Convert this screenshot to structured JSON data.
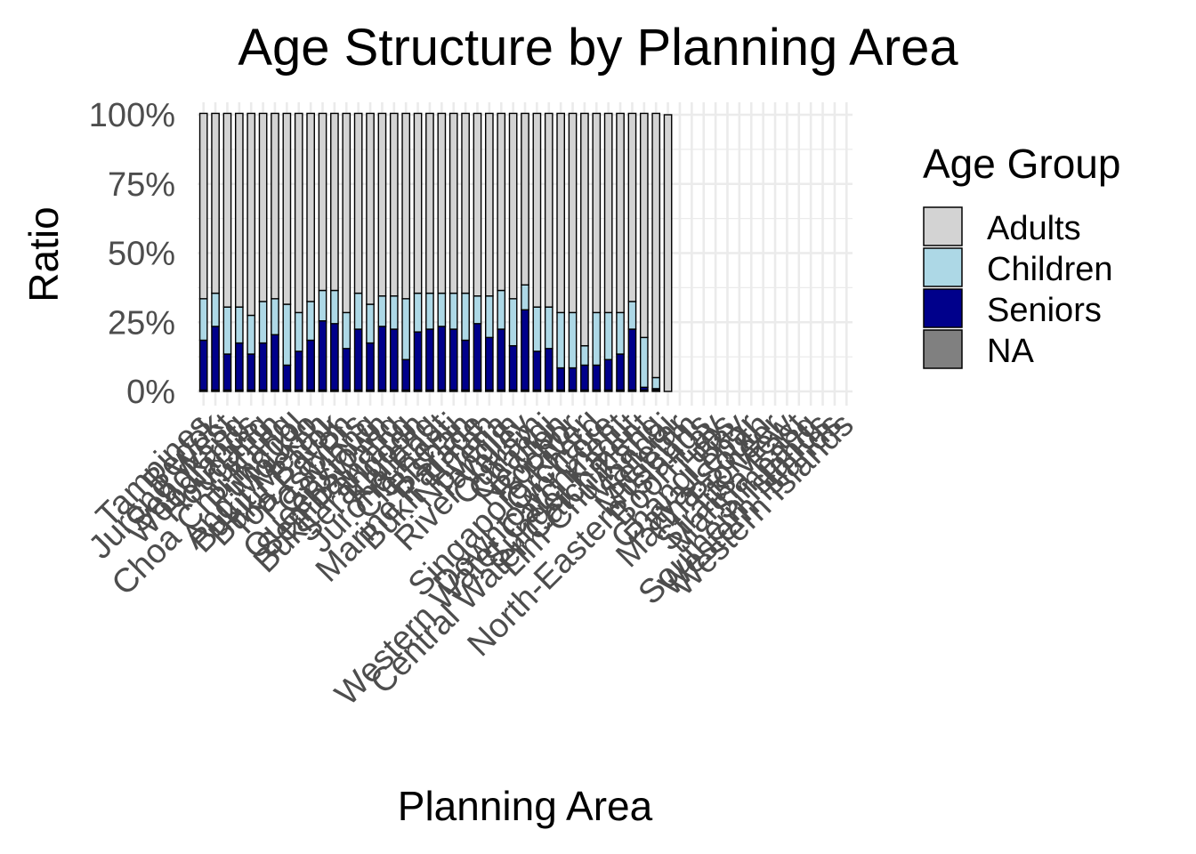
{
  "chart_data": {
    "type": "bar",
    "title": "Age Structure by Planning Area",
    "xlabel": "Planning Area",
    "ylabel": "Ratio",
    "ylim": [
      0,
      1
    ],
    "y_ticks": [
      "0%",
      "25%",
      "50%",
      "75%",
      "100%"
    ],
    "stacked": true,
    "grid": true,
    "legend": {
      "title": "Age Group",
      "placement": "right",
      "entries": [
        "Adults",
        "Children",
        "Seniors",
        "NA"
      ]
    },
    "colors": {
      "Adults": "#d3d3d3",
      "Children": "#add8e6",
      "Seniors": "#00008b",
      "NA": "#808080"
    },
    "categories": [
      "Tampines",
      "Bedok",
      "Jurong West",
      "Sengkang",
      "Woodlands",
      "Hougang",
      "Yishun",
      "Choa Chu Kang",
      "Punggol",
      "Ang Mo Kio",
      "Bukit Merah",
      "Bukit Batok",
      "Toa Payoh",
      "Pasir Ris",
      "Geylang",
      "Queenstown",
      "Sembawang",
      "Bukit Panjang",
      "Serangoon",
      "Kallang",
      "Jurong East",
      "Clementi",
      "Bishan",
      "Marine Parade",
      "Bukit Timah",
      "Novena",
      "Tanglin",
      "River Valley",
      "Outram",
      "Changi",
      "Newton",
      "Rochor",
      "Singapore River",
      "Orchard",
      "Downtown Core",
      "Western Water Catchment",
      "Sungei Kadut",
      "Central Water Catchment",
      "Lim Chu Kang",
      "Mandai",
      "Seletar",
      "Museum",
      "North-Eastern Islands",
      "Boon Lay",
      "Tuas",
      "Changi Bay",
      "Paya Lebar",
      "Marina South",
      "Pioneer",
      "Straits View",
      "Marina East",
      "Simpang",
      "Southern Islands",
      "Western Islands",
      "Western Islands"
    ],
    "series": [
      {
        "name": "Seniors",
        "values": [
          0.18,
          0.23,
          0.13,
          0.17,
          0.13,
          0.17,
          0.2,
          0.09,
          0.14,
          0.18,
          0.25,
          0.24,
          0.15,
          0.22,
          0.17,
          0.23,
          0.22,
          0.11,
          0.21,
          0.22,
          0.23,
          0.22,
          0.18,
          0.24,
          0.19,
          0.22,
          0.16,
          0.29,
          0.14,
          0.15,
          0.08,
          0.08,
          0.09,
          0.09,
          0.11,
          0.13,
          0.22,
          0.01,
          0.005,
          0,
          0,
          0,
          0,
          0,
          0,
          0,
          0,
          0,
          0,
          0,
          0,
          0,
          0,
          0,
          0
        ]
      },
      {
        "name": "Children",
        "values": [
          0.15,
          0.12,
          0.17,
          0.13,
          0.14,
          0.15,
          0.13,
          0.22,
          0.14,
          0.14,
          0.11,
          0.12,
          0.13,
          0.13,
          0.14,
          0.11,
          0.12,
          0.22,
          0.14,
          0.13,
          0.12,
          0.13,
          0.17,
          0.1,
          0.15,
          0.14,
          0.17,
          0.09,
          0.16,
          0.15,
          0.2,
          0.2,
          0.07,
          0.19,
          0.17,
          0.15,
          0.1,
          0.18,
          0.04,
          0,
          0,
          0,
          0,
          0,
          0,
          0,
          0,
          0,
          0,
          0,
          0,
          0,
          0,
          0,
          0
        ]
      },
      {
        "name": "Adults",
        "values": [
          0.67,
          0.65,
          0.7,
          0.7,
          0.73,
          0.68,
          0.67,
          0.69,
          0.72,
          0.68,
          0.64,
          0.64,
          0.72,
          0.65,
          0.69,
          0.66,
          0.66,
          0.67,
          0.65,
          0.65,
          0.65,
          0.65,
          0.65,
          0.66,
          0.66,
          0.64,
          0.67,
          0.62,
          0.7,
          0.7,
          0.72,
          0.72,
          0.84,
          0.72,
          0.72,
          0.72,
          0.68,
          0.81,
          0.955,
          1,
          0,
          0,
          0,
          0,
          0,
          0,
          0,
          0,
          0,
          0,
          0,
          0,
          0,
          0,
          0
        ]
      },
      {
        "name": "NA",
        "values": [
          0.005,
          0.005,
          0.005,
          0.005,
          0.005,
          0.005,
          0.005,
          0.005,
          0.005,
          0.005,
          0.005,
          0.005,
          0.005,
          0.005,
          0.005,
          0.005,
          0.005,
          0.005,
          0.005,
          0.005,
          0.005,
          0.005,
          0.005,
          0.005,
          0.005,
          0.005,
          0.005,
          0.005,
          0.005,
          0.005,
          0.005,
          0.005,
          0.005,
          0.005,
          0.005,
          0.005,
          0.005,
          0.005,
          0.005,
          0,
          0,
          0,
          0,
          0,
          0,
          0,
          0,
          0,
          0,
          0,
          0,
          0,
          0,
          0,
          0
        ]
      }
    ]
  }
}
